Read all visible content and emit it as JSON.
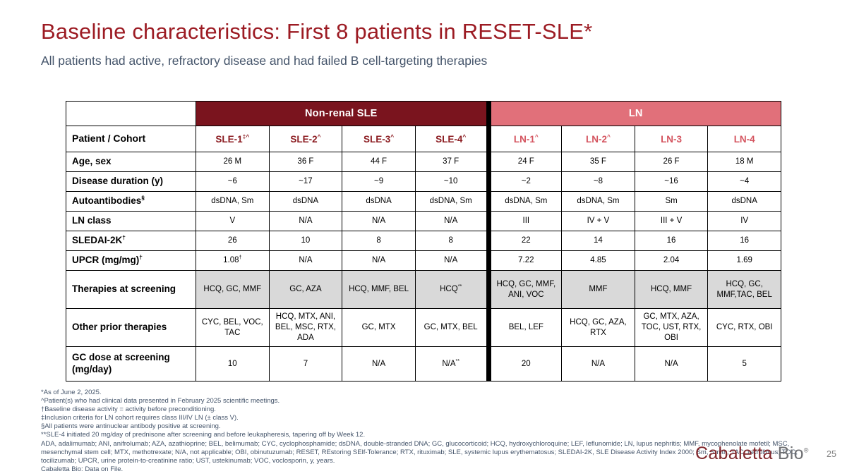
{
  "slide": {
    "title": "Baseline characteristics: First 8 patients in RESET-SLE*",
    "subtitle": "All patients had active, refractory disease and had failed B cell-targeting therapies",
    "page_number": "25"
  },
  "colors": {
    "title_text": "#9c1b23",
    "subtitle_text": "#44546a",
    "sle_band": "#7a141e",
    "ln_band": "#e1707a",
    "sle_header_text": "#8c1d22",
    "ln_header_text": "#d4545f",
    "shaded_cell": "#d9d9d9",
    "border": "#000000",
    "footnote_text": "#44546a",
    "logo_primary": "#7f262b",
    "logo_secondary": "#6e6f72",
    "page_number": "#808080"
  },
  "table": {
    "corner_label": "Patient / Cohort",
    "group_headers": [
      {
        "label": "Non-renal SLE",
        "span": 4
      },
      {
        "label": "LN",
        "span": 4
      }
    ],
    "columns": [
      {
        "text": "SLE-1",
        "sup": "‡^",
        "group": "sle"
      },
      {
        "text": "SLE-2",
        "sup": "^",
        "group": "sle"
      },
      {
        "text": "SLE-3",
        "sup": "^",
        "group": "sle"
      },
      {
        "text": "SLE-4",
        "sup": "^",
        "group": "sle"
      },
      {
        "text": "LN-1",
        "sup": "^",
        "group": "ln"
      },
      {
        "text": "LN-2",
        "sup": "^",
        "group": "ln"
      },
      {
        "text": "LN-3",
        "sup": "",
        "group": "ln"
      },
      {
        "text": "LN-4",
        "sup": "",
        "group": "ln"
      }
    ],
    "rows": [
      {
        "label": {
          "text": "Age, sex"
        },
        "cells": [
          "26 M",
          "36 F",
          "44 F",
          "37 F",
          "24 F",
          "35 F",
          "26 F",
          "18 M"
        ]
      },
      {
        "label": {
          "text": "Disease duration (y)"
        },
        "cells": [
          "~6",
          "~17",
          "~9",
          "~10",
          "~2",
          "~8",
          "~16",
          "~4"
        ]
      },
      {
        "label": {
          "text": "Autoantibodies",
          "sup": "§"
        },
        "cells": [
          "dsDNA, Sm",
          "dsDNA",
          "dsDNA",
          "dsDNA, Sm",
          "dsDNA, Sm",
          "dsDNA, Sm",
          "Sm",
          "dsDNA"
        ]
      },
      {
        "label": {
          "text": "LN class"
        },
        "cells": [
          "V",
          "N/A",
          "N/A",
          "N/A",
          "III",
          "IV + V",
          "III + V",
          "IV"
        ]
      },
      {
        "label": {
          "text": "SLEDAI-2K",
          "sup": "†"
        },
        "cells": [
          "26",
          "10",
          "8",
          "8",
          "22",
          "14",
          "16",
          "16"
        ]
      },
      {
        "label": {
          "text": "UPCR (mg/mg)",
          "sup": "†"
        },
        "cells": [
          {
            "text": "1.08",
            "sup": "†"
          },
          "N/A",
          "N/A",
          "N/A",
          "7.22",
          "4.85",
          "2.04",
          "1.69"
        ]
      },
      {
        "label": {
          "text": "Therapies at screening"
        },
        "shaded": true,
        "cells": [
          "HCQ, GC, MMF",
          "GC, AZA",
          "HCQ, MMF, BEL",
          {
            "text": "HCQ",
            "sup": "**"
          },
          "HCQ, GC, MMF, ANI, VOC",
          "MMF",
          "HCQ, MMF",
          "HCQ, GC, MMF,TAC, BEL"
        ]
      },
      {
        "label": {
          "text": "Other prior therapies"
        },
        "cells": [
          "CYC, BEL, VOC, TAC",
          "HCQ, MTX, ANI, BEL, MSC, RTX, ADA",
          "GC, MTX",
          "GC, MTX, BEL",
          "BEL, LEF",
          "HCQ, GC, AZA, RTX",
          "GC, MTX, AZA, TOC, UST, RTX, OBI",
          "CYC, RTX, OBI"
        ]
      },
      {
        "label": {
          "text": "GC dose at screening (mg/day)"
        },
        "cells": [
          "10",
          "7",
          "N/A",
          {
            "text": "N/A",
            "sup": "**"
          },
          "20",
          "N/A",
          "N/A",
          "5"
        ]
      }
    ]
  },
  "footnotes": [
    "*As of June 2, 2025.",
    "^Patient(s) who had clinical data presented in February 2025 scientific meetings.",
    "†Baseline disease activity = activity before preconditioning.",
    "‡Inclusion criteria for LN cohort requires class III/IV LN (± class V).",
    "§All patients were antinuclear antibody positive at screening.",
    "**SLE-4 initiated 20 mg/day of prednisone after screening and before leukapheresis, tapering off by Week 12.",
    "ADA, adalimumab; ANI, anifrolumab; AZA, azathioprine; BEL, belimumab; CYC, cyclophosphamide; dsDNA, double-stranded DNA; GC, glucocorticoid; HCQ, hydroxychloroquine; LEF, leflunomide; LN, lupus nephritis; MMF, mycophenolate mofetil; MSC, mesenchymal stem cell; MTX, methotrexate; N/A, not applicable; OBI, obinutuzumab; RESET, REstoring SElf-Tolerance; RTX, rituximab; SLE, systemic lupus erythematosus; SLEDAI-2K, SLE Disease Activity Index 2000; Sm, Smith; TAC, tacrolimus; TOC, tocilizumab; UPCR, urine protein-to-creatinine ratio; UST, ustekinumab; VOC, voclosporin, y, years.",
    "Cabaletta Bio: Data on File."
  ],
  "logo": {
    "brand_primary": "Cabaletta",
    "brand_secondary": "Bio",
    "registered": "®"
  }
}
